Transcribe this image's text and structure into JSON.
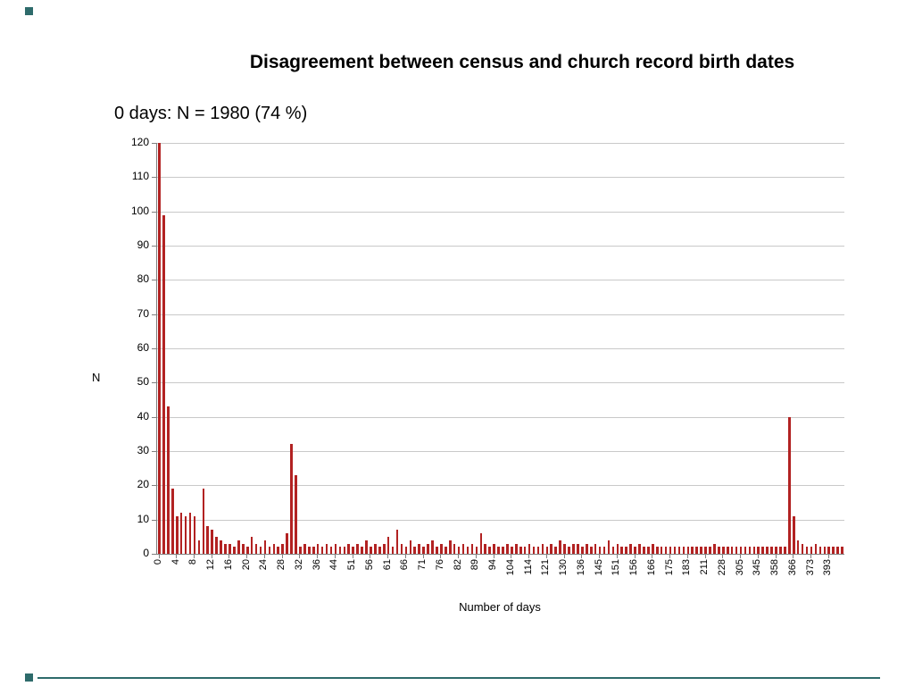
{
  "decorations": {
    "accent_color": "#2e6b6b"
  },
  "chart_data": {
    "type": "bar",
    "title": "Disagreement between census and church record birth dates",
    "annotation": "0 days: N = 1980 (74 %)",
    "xlabel": "Number of days",
    "ylabel": "N",
    "ylim": [
      0,
      120
    ],
    "y_tick_step": 10,
    "grid": true,
    "legend": false,
    "bar_color": "#b22222",
    "clipped_first_bar": {
      "x_label": "0",
      "actual_value": 1980,
      "displayed_as": "clipped at y-axis max 120"
    },
    "x_tick_interval": 4,
    "x_tick_labels": [
      "0",
      "4",
      "8",
      "12",
      "16",
      "20",
      "24",
      "28",
      "32",
      "36",
      "44",
      "51",
      "56",
      "61",
      "66",
      "71",
      "76",
      "82",
      "89",
      "94",
      "104",
      "114",
      "121",
      "130",
      "136",
      "145",
      "151",
      "156",
      "166",
      "175",
      "183",
      "211",
      "228",
      "305",
      "345",
      "358",
      "366",
      "373",
      "393"
    ],
    "values": [
      1980,
      99,
      43,
      19,
      11,
      12,
      11,
      12,
      11,
      4,
      19,
      8,
      7,
      5,
      4,
      3,
      3,
      2,
      4,
      3,
      2,
      5,
      3,
      2,
      4,
      2,
      3,
      2,
      3,
      6,
      32,
      23,
      2,
      3,
      2,
      2,
      3,
      2,
      3,
      2,
      3,
      2,
      2,
      3,
      2,
      3,
      2,
      4,
      2,
      3,
      2,
      3,
      5,
      2,
      7,
      3,
      2,
      4,
      2,
      3,
      2,
      3,
      4,
      2,
      3,
      2,
      4,
      3,
      2,
      3,
      2,
      3,
      2,
      6,
      3,
      2,
      3,
      2,
      2,
      3,
      2,
      3,
      2,
      2,
      3,
      2,
      2,
      3,
      2,
      3,
      2,
      4,
      3,
      2,
      3,
      3,
      2,
      3,
      2,
      3,
      2,
      2,
      4,
      2,
      3,
      2,
      2,
      3,
      2,
      3,
      2,
      2,
      3,
      2,
      2,
      2,
      2,
      2,
      2,
      2,
      2,
      2,
      2,
      2,
      2,
      2,
      3,
      2,
      2,
      2,
      2,
      2,
      2,
      2,
      2,
      2,
      2,
      2,
      2,
      2,
      2,
      2,
      2,
      40,
      11,
      4,
      3,
      2,
      2,
      3,
      2,
      2,
      2,
      2,
      2,
      2
    ]
  }
}
